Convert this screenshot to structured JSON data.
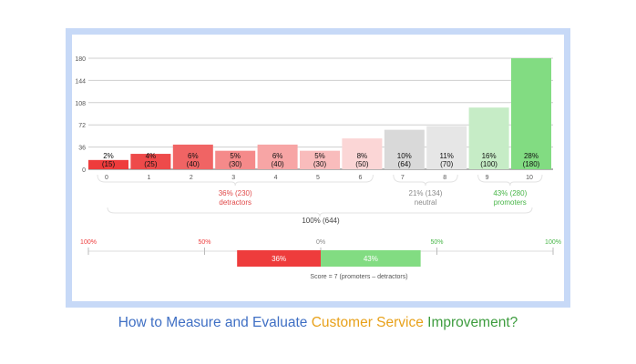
{
  "caption": {
    "part1": "How to Measure and Evaluate ",
    "part2": "Customer Service",
    "part3": " Improvement?"
  },
  "colors": {
    "frame": "#c7d9f7",
    "detractor_text": "#e04848",
    "neutral_text": "#8a8a8a",
    "promoter_text": "#47b547",
    "caption_blue": "#3f6fc4",
    "caption_orange": "#e8a11a",
    "caption_green": "#3d9c3e"
  },
  "chart_data": {
    "type": "bar",
    "categories": [
      "0",
      "1",
      "2",
      "3",
      "4",
      "5",
      "6",
      "7",
      "8",
      "9",
      "10"
    ],
    "values": [
      15,
      25,
      40,
      30,
      40,
      30,
      50,
      64,
      70,
      100,
      180
    ],
    "bar_labels_pct": [
      "2%",
      "4%",
      "6%",
      "5%",
      "6%",
      "5%",
      "8%",
      "10%",
      "11%",
      "16%",
      "28%"
    ],
    "bar_labels_count": [
      "(15)",
      "(25)",
      "(40)",
      "(30)",
      "(40)",
      "(30)",
      "(50)",
      "(64)",
      "(70)",
      "(100)",
      "(180)"
    ],
    "bar_colors": [
      "#ee3c3c",
      "#ee4a4a",
      "#f06464",
      "#f58a8a",
      "#f7a5a5",
      "#f9bcbc",
      "#fbd6d6",
      "#d9d9d9",
      "#e6e6e6",
      "#c6ecc6",
      "#82dc82"
    ],
    "yticks": [
      0,
      36,
      72,
      108,
      144,
      180
    ],
    "ylim": [
      0,
      180
    ],
    "groups": [
      {
        "pct": "36% (230)",
        "label": "detractors",
        "from": 0,
        "to": 6
      },
      {
        "pct": "21% (134)",
        "label": "neutral",
        "from": 7,
        "to": 8
      },
      {
        "pct": "43% (280)",
        "label": "promoters",
        "from": 9,
        "to": 10
      }
    ],
    "total_label": "100% (644)",
    "score_axis": {
      "ticks": [
        "100%",
        "50%",
        "0%",
        "50%",
        "100%"
      ],
      "tick_values": [
        -100,
        -50,
        0,
        50,
        100
      ],
      "tick_colors": [
        "#ee3c3c",
        "#ee3c3c",
        "#888888",
        "#47b547",
        "#47b547"
      ]
    },
    "score_bars": [
      {
        "label": "36%",
        "value": -36,
        "color": "#ee3c3c"
      },
      {
        "label": "43%",
        "value": 43,
        "color": "#82dc82"
      }
    ],
    "score_text": "Score = 7  (promoters  –  detractors)"
  }
}
